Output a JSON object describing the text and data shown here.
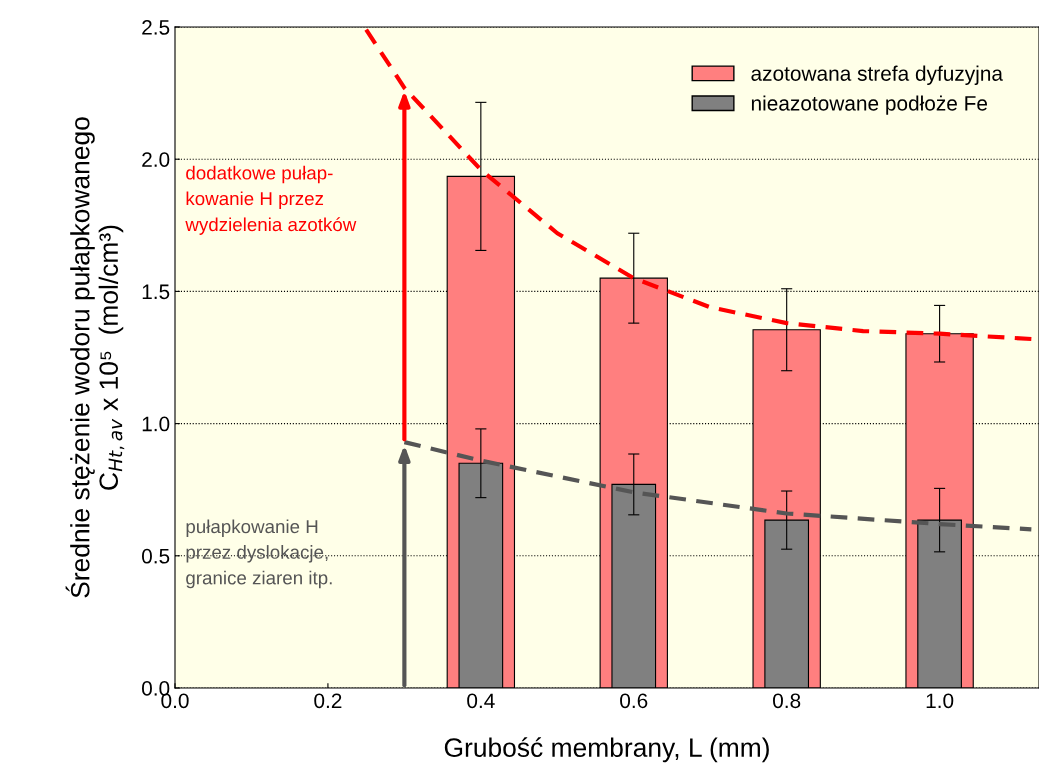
{
  "chart_data": {
    "type": "bar",
    "xlabel": "Grubość membrany, L (mm)",
    "ylabel": "Średnie stężenie wodoru pułapkowanego\nC$_{Ht,av}$ x 10⁵  (mol/cm³)",
    "xlim": [
      0,
      1.13
    ],
    "xticks": [
      {
        "value": 0,
        "label": "0.0"
      },
      0.2,
      0.4,
      0.6,
      0.8,
      {
        "value": 1,
        "label": "1.0"
      }
    ],
    "ylim": [
      0,
      2.5
    ],
    "yticks": [
      {
        "value": 0,
        "label": "0.0"
      },
      0.5,
      {
        "value": 1,
        "label": "1.0"
      },
      1.5,
      {
        "value": 2,
        "label": "2.0"
      },
      2.5
    ],
    "grid": "y",
    "legend": "top right",
    "line_style": "dashed",
    "x": [
      0.4,
      0.6,
      0.8,
      1.0
    ],
    "series": [
      {
        "name": "azotowana strefa dyfuzyjna",
        "color": "#ff7f7f",
        "values": [
          1.935,
          1.55,
          1.355,
          1.34
        ],
        "errors": [
          0.28,
          0.17,
          0.155,
          0.107
        ]
      },
      {
        "name": "nieazotowane podłoże Fe",
        "color": "#808080",
        "values": [
          0.85,
          0.77,
          0.635,
          0.635
        ],
        "errors": [
          0.13,
          0.115,
          0.11,
          0.12
        ]
      },
      {
        "type": "line",
        "color": "#ff0000",
        "x": [
          0.25,
          0.3,
          0.4,
          0.5,
          0.6,
          0.7,
          0.8,
          0.9,
          1.0,
          1.12
        ],
        "values": [
          2.49,
          2.27,
          1.96,
          1.72,
          1.55,
          1.44,
          1.38,
          1.35,
          1.34,
          1.32
        ]
      },
      {
        "type": "line",
        "color": "#555555",
        "x": [
          0.3,
          0.4,
          0.6,
          0.8,
          1.0,
          1.12
        ],
        "values": [
          0.93,
          0.86,
          0.74,
          0.66,
          0.62,
          0.6
        ]
      }
    ],
    "annotations": [
      "dodatkowe pułap-\nkowanie H przez\nwydzielenia azotków",
      "pułapkowanie H\nprzez dyslokacje,\ngranice ziaren itp."
    ]
  }
}
